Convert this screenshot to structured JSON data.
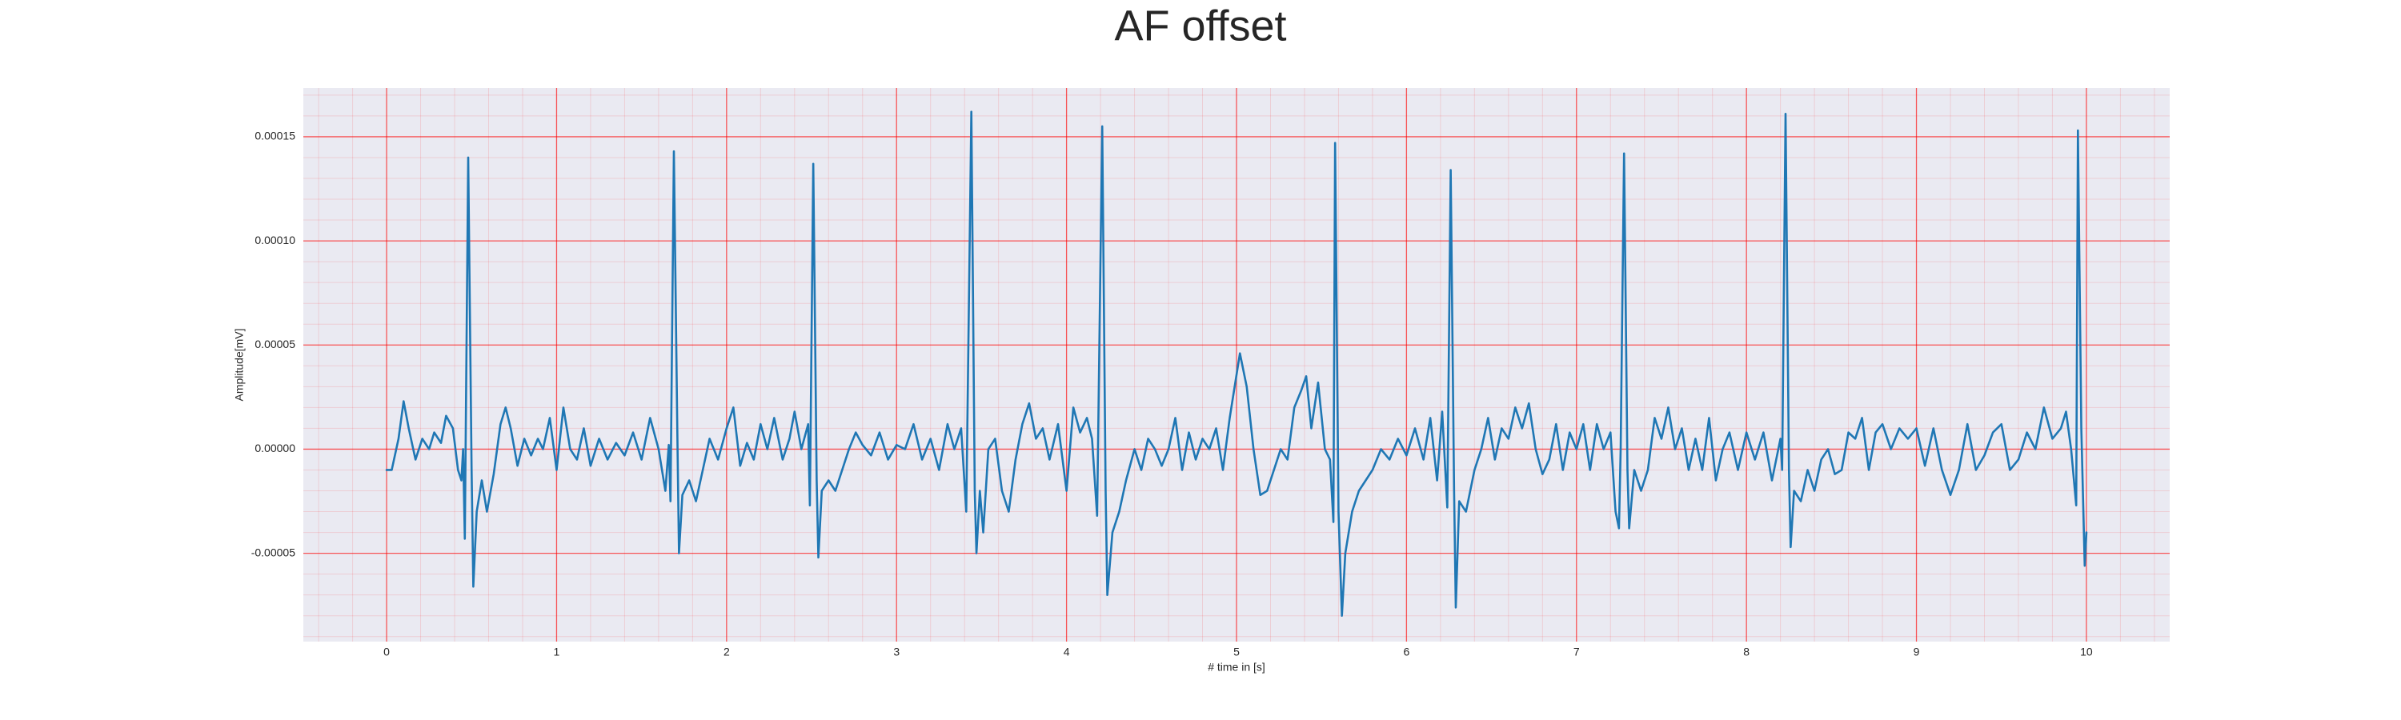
{
  "chart_data": {
    "type": "line",
    "title": "AF offset",
    "xlabel": "# time in [s]",
    "ylabel": "Amplitude[mV]",
    "color": "#1f77b4",
    "grid": true,
    "grid_color": "#ff0000",
    "minor_grid": true,
    "background": "#eaeaf2",
    "xlim": [
      -0.49,
      10.49
    ],
    "ylim": [
      -9.24e-05,
      0.0001734
    ],
    "xticks": [
      0,
      1,
      2,
      3,
      4,
      5,
      6,
      7,
      8,
      9,
      10
    ],
    "yticks": [
      {
        "value": -5e-05,
        "label": "-0.00005"
      },
      {
        "value": 0,
        "label": "0.00000"
      },
      {
        "value": 5e-05,
        "label": "0.00005"
      },
      {
        "value": 0.0001,
        "label": "0.00010"
      },
      {
        "value": 0.00015,
        "label": "0.00015"
      }
    ],
    "x": [
      0.0,
      0.03,
      0.07,
      0.1,
      0.13,
      0.17,
      0.21,
      0.25,
      0.28,
      0.32,
      0.35,
      0.39,
      0.42,
      0.44,
      0.45,
      0.46,
      0.48,
      0.5,
      0.51,
      0.53,
      0.56,
      0.59,
      0.63,
      0.67,
      0.7,
      0.73,
      0.77,
      0.81,
      0.85,
      0.89,
      0.92,
      0.96,
      1.0,
      1.04,
      1.08,
      1.12,
      1.16,
      1.2,
      1.25,
      1.3,
      1.35,
      1.4,
      1.45,
      1.5,
      1.55,
      1.6,
      1.64,
      1.66,
      1.67,
      1.69,
      1.71,
      1.72,
      1.74,
      1.78,
      1.82,
      1.86,
      1.9,
      1.95,
      2.0,
      2.04,
      2.08,
      2.12,
      2.16,
      2.2,
      2.24,
      2.28,
      2.33,
      2.37,
      2.4,
      2.44,
      2.48,
      2.49,
      2.51,
      2.53,
      2.54,
      2.56,
      2.6,
      2.64,
      2.68,
      2.72,
      2.76,
      2.8,
      2.85,
      2.9,
      2.95,
      3.0,
      3.05,
      3.1,
      3.15,
      3.2,
      3.25,
      3.3,
      3.34,
      3.38,
      3.41,
      3.44,
      3.46,
      3.47,
      3.49,
      3.51,
      3.54,
      3.58,
      3.62,
      3.66,
      3.7,
      3.74,
      3.78,
      3.82,
      3.86,
      3.9,
      3.95,
      4.0,
      4.04,
      4.08,
      4.12,
      4.15,
      4.18,
      4.21,
      4.23,
      4.24,
      4.27,
      4.31,
      4.35,
      4.4,
      4.44,
      4.48,
      4.52,
      4.56,
      4.6,
      4.64,
      4.68,
      4.72,
      4.76,
      4.8,
      4.84,
      4.88,
      4.92,
      4.96,
      5.02,
      5.06,
      5.1,
      5.14,
      5.18,
      5.22,
      5.26,
      5.3,
      5.34,
      5.38,
      5.41,
      5.44,
      5.48,
      5.52,
      5.55,
      5.57,
      5.58,
      5.6,
      5.62,
      5.64,
      5.68,
      5.72,
      5.76,
      5.8,
      5.85,
      5.9,
      5.95,
      6.0,
      6.05,
      6.1,
      6.14,
      6.18,
      6.21,
      6.24,
      6.26,
      6.28,
      6.29,
      6.31,
      6.35,
      6.4,
      6.44,
      6.48,
      6.52,
      6.56,
      6.6,
      6.64,
      6.68,
      6.72,
      6.76,
      6.8,
      6.84,
      6.88,
      6.92,
      6.96,
      7.0,
      7.04,
      7.08,
      7.12,
      7.16,
      7.2,
      7.23,
      7.25,
      7.26,
      7.28,
      7.3,
      7.31,
      7.34,
      7.38,
      7.42,
      7.46,
      7.5,
      7.54,
      7.58,
      7.62,
      7.66,
      7.7,
      7.74,
      7.78,
      7.82,
      7.86,
      7.9,
      7.95,
      8.0,
      8.05,
      8.1,
      8.15,
      8.2,
      8.21,
      8.23,
      8.25,
      8.26,
      8.28,
      8.32,
      8.36,
      8.4,
      8.44,
      8.48,
      8.52,
      8.56,
      8.6,
      8.64,
      8.68,
      8.72,
      8.76,
      8.8,
      8.85,
      8.9,
      8.95,
      9.0,
      9.05,
      9.1,
      9.15,
      9.2,
      9.25,
      9.3,
      9.35,
      9.4,
      9.45,
      9.5,
      9.55,
      9.6,
      9.65,
      9.7,
      9.75,
      9.8,
      9.85,
      9.88,
      9.91,
      9.94,
      9.95,
      9.97,
      9.99,
      10.0
    ],
    "values": [
      -1e-05,
      -1e-05,
      5e-06,
      2.3e-05,
      1e-05,
      -5e-06,
      5e-06,
      0.0,
      8e-06,
      3e-06,
      1.6e-05,
      1e-05,
      -1e-05,
      -1.5e-05,
      0.0,
      -4.3e-05,
      0.00014,
      -1e-05,
      -6.6e-05,
      -3e-05,
      -1.5e-05,
      -3e-05,
      -1.2e-05,
      1.2e-05,
      2e-05,
      1e-05,
      -8e-06,
      5e-06,
      -3e-06,
      5e-06,
      0.0,
      1.5e-05,
      -1e-05,
      2e-05,
      0.0,
      -5e-06,
      1e-05,
      -8e-06,
      5e-06,
      -5e-06,
      3e-06,
      -3e-06,
      8e-06,
      -5e-06,
      1.5e-05,
      0.0,
      -2e-05,
      2e-06,
      -2.5e-05,
      0.000143,
      1e-05,
      -5e-05,
      -2.2e-05,
      -1.5e-05,
      -2.5e-05,
      -1e-05,
      5e-06,
      -5e-06,
      1e-05,
      2e-05,
      -8e-06,
      3e-06,
      -5e-06,
      1.2e-05,
      0.0,
      1.5e-05,
      -5e-06,
      5e-06,
      1.8e-05,
      0.0,
      1.2e-05,
      -2.7e-05,
      0.000137,
      -1.5e-05,
      -5.2e-05,
      -2e-05,
      -1.5e-05,
      -2e-05,
      -1e-05,
      0.0,
      8e-06,
      2e-06,
      -3e-06,
      8e-06,
      -5e-06,
      2e-06,
      0.0,
      1.2e-05,
      -5e-06,
      5e-06,
      -1e-05,
      1.2e-05,
      0.0,
      1e-05,
      -3e-05,
      0.000162,
      -2e-05,
      -5e-05,
      -2e-05,
      -4e-05,
      0.0,
      5e-06,
      -2e-05,
      -3e-05,
      -5e-06,
      1.2e-05,
      2.2e-05,
      5e-06,
      1e-05,
      -5e-06,
      1.2e-05,
      -2e-05,
      2e-05,
      8e-06,
      1.5e-05,
      5e-06,
      -3.2e-05,
      0.000155,
      -2e-05,
      -7e-05,
      -4e-05,
      -3e-05,
      -1.5e-05,
      0.0,
      -1e-05,
      5e-06,
      0.0,
      -8e-06,
      0.0,
      1.5e-05,
      -1e-05,
      8e-06,
      -5e-06,
      5e-06,
      0.0,
      1e-05,
      -1e-05,
      1.5e-05,
      4.6e-05,
      3e-05,
      0.0,
      -2.2e-05,
      -2e-05,
      -1e-05,
      0.0,
      -5e-06,
      2e-05,
      2.8e-05,
      3.5e-05,
      1e-05,
      3.2e-05,
      0.0,
      -5e-06,
      -3.5e-05,
      0.000147,
      -3e-05,
      -8e-05,
      -5e-05,
      -3e-05,
      -2e-05,
      -1.5e-05,
      -1e-05,
      0.0,
      -5e-06,
      5e-06,
      -3e-06,
      1e-05,
      -5e-06,
      1.5e-05,
      -1.5e-05,
      1.8e-05,
      -2.8e-05,
      0.000134,
      -2e-05,
      -7.6e-05,
      -2.5e-05,
      -3e-05,
      -1e-05,
      0.0,
      1.5e-05,
      -5e-06,
      1e-05,
      5e-06,
      2e-05,
      1e-05,
      2.2e-05,
      0.0,
      -1.2e-05,
      -5e-06,
      1.2e-05,
      -1e-05,
      8e-06,
      0.0,
      1.2e-05,
      -1e-05,
      1.2e-05,
      0.0,
      8e-06,
      -3e-05,
      -3.8e-05,
      0.0,
      0.000142,
      -1e-05,
      -3.8e-05,
      -1e-05,
      -2e-05,
      -1e-05,
      1.5e-05,
      5e-06,
      2e-05,
      0.0,
      1e-05,
      -1e-05,
      5e-06,
      -1e-05,
      1.5e-05,
      -1.5e-05,
      0.0,
      8e-06,
      -1e-05,
      8e-06,
      -5e-06,
      8e-06,
      -1.5e-05,
      5e-06,
      -1e-05,
      0.000161,
      -1e-05,
      -4.7e-05,
      -2e-05,
      -2.5e-05,
      -1e-05,
      -2e-05,
      -5e-06,
      0.0,
      -1.2e-05,
      -1e-05,
      8e-06,
      5e-06,
      1.5e-05,
      -1e-05,
      8e-06,
      1.2e-05,
      0.0,
      1e-05,
      5e-06,
      1e-05,
      -8e-06,
      1e-05,
      -1e-05,
      -2.2e-05,
      -1e-05,
      1.2e-05,
      -1e-05,
      -3e-06,
      8e-06,
      1.2e-05,
      -1e-05,
      -5e-06,
      8e-06,
      0.0,
      2e-05,
      5e-06,
      1e-05,
      1.8e-05,
      0.0,
      -2.7e-05,
      0.000153,
      1e-05,
      -5.6e-05,
      -4e-05
    ]
  }
}
